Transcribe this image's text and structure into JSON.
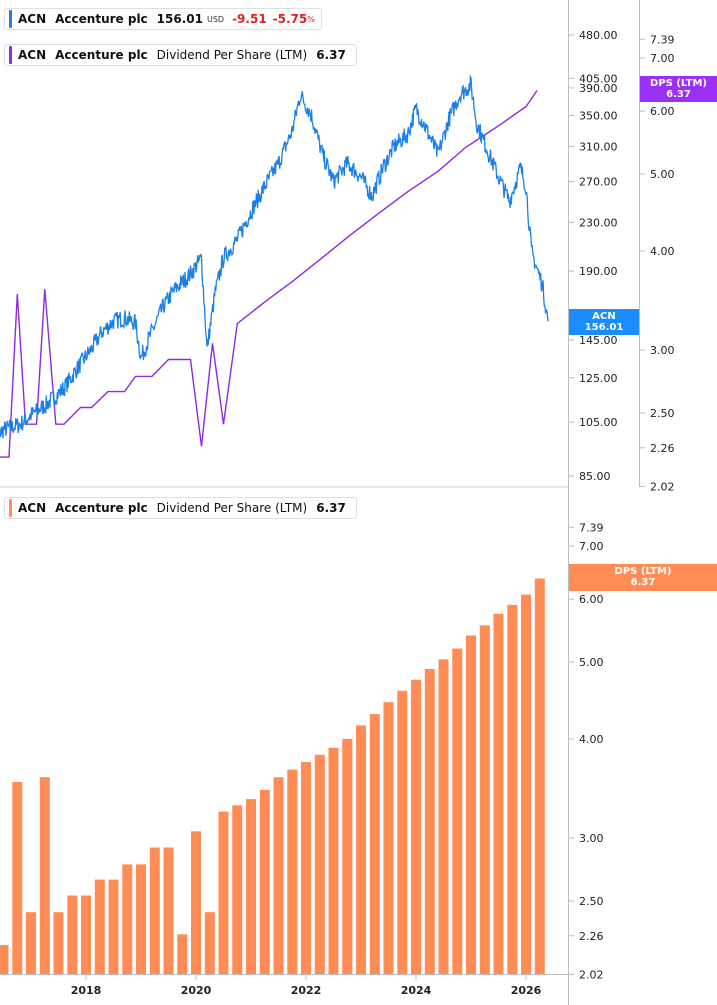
{
  "legend1": {
    "symbol": "ACN",
    "company": "Accenture plc",
    "price": "156.01",
    "currency": "USD",
    "change": "-9.51",
    "change_pct": "-5.75",
    "pct_sign": "%",
    "color": "#1a7fe8"
  },
  "legend2": {
    "symbol": "ACN",
    "company": "Accenture plc",
    "metric": "Dividend Per Share (LTM)",
    "value": "6.37",
    "color": "#8b2be2"
  },
  "legend3": {
    "symbol": "ACN",
    "company": "Accenture plc",
    "metric": "Dividend Per Share (LTM)",
    "value": "6.37",
    "color": "#ff8c55"
  },
  "tags": {
    "price": {
      "line1": "ACN",
      "line2": "156.01",
      "color": "#1a8cff"
    },
    "dps_top": {
      "line1": "DPS (LTM)",
      "line2": "6.37",
      "color": "#9a2ff5"
    },
    "dps_bottom": {
      "line1": "DPS (LTM)",
      "line2": "6.37",
      "color": "#ff8c55"
    }
  },
  "chart_data": [
    {
      "type": "line",
      "panel": "top",
      "y_scale": "log",
      "price_axis_ticks": [
        480,
        405,
        390,
        350,
        310,
        270,
        230,
        190,
        145,
        125,
        105,
        85
      ],
      "price_axis_labels": [
        "480.00",
        "405.00",
        "390.00",
        "350.00",
        "310.00",
        "270.00",
        "230.00",
        "190.00",
        "145.00",
        "125.00",
        "105.00",
        "85.00"
      ],
      "dps_axis_ticks": [
        7.39,
        7.0,
        6.0,
        5.0,
        4.0,
        3.0,
        2.5,
        2.26,
        2.02
      ],
      "dps_axis_labels": [
        "7.39",
        "7.00",
        "6.00",
        "5.00",
        "4.00",
        "3.00",
        "2.50",
        "2.26",
        "2.02"
      ],
      "series": [
        {
          "name": "ACN",
          "axis": "price",
          "color": "#1a7fe8",
          "x": [
            2016.3,
            2016.5,
            2016.8,
            2017.0,
            2017.3,
            2017.6,
            2017.9,
            2018.1,
            2018.3,
            2018.5,
            2018.7,
            2018.9,
            2019.0,
            2019.2,
            2019.4,
            2019.6,
            2019.9,
            2020.1,
            2020.2,
            2020.35,
            2020.5,
            2020.75,
            2021.0,
            2021.25,
            2021.5,
            2021.75,
            2021.9,
            2022.1,
            2022.3,
            2022.5,
            2022.75,
            2023.0,
            2023.2,
            2023.4,
            2023.6,
            2023.85,
            2024.0,
            2024.2,
            2024.4,
            2024.6,
            2024.8,
            2025.0,
            2025.1,
            2025.3,
            2025.5,
            2025.7,
            2025.9,
            2026.0,
            2026.1,
            2026.3,
            2026.4
          ],
          "y": [
            98,
            102,
            104,
            108,
            113,
            120,
            132,
            140,
            150,
            156,
            158,
            155,
            135,
            150,
            165,
            176,
            188,
            200,
            140,
            175,
            200,
            215,
            240,
            265,
            290,
            330,
            380,
            350,
            300,
            270,
            290,
            275,
            255,
            285,
            310,
            325,
            360,
            330,
            300,
            345,
            380,
            395,
            340,
            305,
            275,
            250,
            285,
            265,
            205,
            180,
            156
          ]
        },
        {
          "name": "Dividend Per Share (LTM)",
          "axis": "dps",
          "color": "#8b2be2",
          "x": [
            2016.3,
            2016.6,
            2016.75,
            2016.9,
            2017.1,
            2017.25,
            2017.45,
            2017.6,
            2017.9,
            2018.1,
            2018.4,
            2018.7,
            2018.9,
            2019.2,
            2019.5,
            2019.9,
            2020.1,
            2020.3,
            2020.5,
            2020.75,
            2021.25,
            2021.75,
            2022.25,
            2022.75,
            2023.3,
            2023.85,
            2024.4,
            2024.9,
            2025.5,
            2026.0,
            2026.2
          ],
          "y": [
            2.2,
            2.2,
            3.53,
            2.42,
            2.42,
            3.58,
            2.42,
            2.42,
            2.54,
            2.54,
            2.66,
            2.66,
            2.78,
            2.78,
            2.92,
            2.92,
            2.27,
            3.06,
            2.42,
            3.24,
            3.45,
            3.66,
            3.9,
            4.16,
            4.45,
            4.75,
            5.04,
            5.4,
            5.75,
            6.08,
            6.37
          ]
        }
      ]
    },
    {
      "type": "bar",
      "panel": "bottom",
      "series_name": "Dividend Per Share (LTM)",
      "color": "#ff8c55",
      "y_scale": "log",
      "axis_ticks": [
        7.39,
        7.0,
        6.0,
        5.0,
        4.0,
        3.0,
        2.5,
        2.26,
        2.02
      ],
      "axis_labels": [
        "7.39",
        "7.00",
        "6.00",
        "5.00",
        "4.00",
        "3.00",
        "2.50",
        "2.26",
        "2.02"
      ],
      "x_ticks": [
        2018,
        2020,
        2022,
        2024,
        2026
      ],
      "x_labels": [
        "2018",
        "2020",
        "2022",
        "2024",
        "2026"
      ],
      "x": [
        2016.25,
        2016.5,
        2016.75,
        2017.0,
        2017.25,
        2017.5,
        2017.75,
        2018.0,
        2018.25,
        2018.5,
        2018.75,
        2019.0,
        2019.25,
        2019.5,
        2019.75,
        2020.0,
        2020.25,
        2020.5,
        2020.75,
        2021.0,
        2021.25,
        2021.5,
        2021.75,
        2022.0,
        2022.25,
        2022.5,
        2022.75,
        2023.0,
        2023.25,
        2023.5,
        2023.75,
        2024.0,
        2024.25,
        2024.5,
        2024.75,
        2025.0,
        2025.25,
        2025.5,
        2025.75,
        2026.0,
        2026.25
      ],
      "values": [
        2.2,
        2.2,
        3.53,
        2.42,
        3.58,
        2.42,
        2.54,
        2.54,
        2.66,
        2.66,
        2.78,
        2.78,
        2.92,
        2.92,
        2.27,
        3.06,
        2.42,
        3.24,
        3.3,
        3.36,
        3.45,
        3.58,
        3.66,
        3.74,
        3.82,
        3.9,
        4.0,
        4.16,
        4.3,
        4.45,
        4.6,
        4.75,
        4.9,
        5.04,
        5.2,
        5.4,
        5.56,
        5.75,
        5.9,
        6.08,
        6.37
      ]
    }
  ]
}
